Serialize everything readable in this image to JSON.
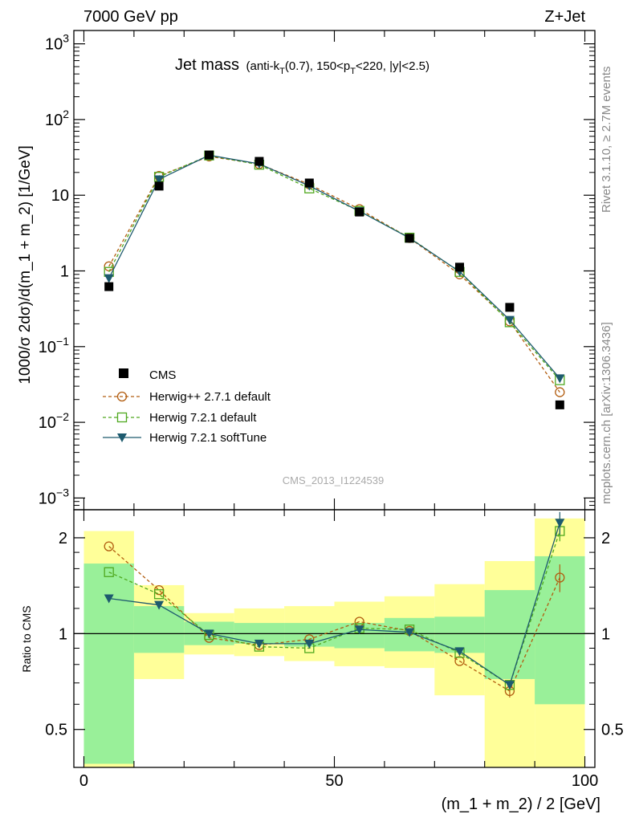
{
  "header": {
    "energy": "7000 GeV pp",
    "process": "Z+Jet"
  },
  "side_labels": {
    "rivet": "Rivet 3.1.10, ≥ 2.7M events",
    "mcplots": "mcplots.cern.ch [arXiv:1306.3436]"
  },
  "chart_data": [
    {
      "type": "scatter",
      "title": "Jet mass",
      "subtitle": "(anti-k_T(0.7), 150<p_T<220, |y|<2.5)",
      "title_parts": {
        "main": "Jet mass",
        "s1": "(anti-k",
        "s1sub": "T",
        "s2": "(0.7), 150<p",
        "s2sub": "T",
        "s3": "<220, |y|<2.5)"
      },
      "watermark": "CMS_2013_I1224539",
      "ylabel": "1000/σ 2dσ)/d(m_1 + m_2) [1/GeV]",
      "yscale": "log",
      "ylim": [
        0.0007,
        1500
      ],
      "xlim": [
        -2,
        102
      ],
      "y_ticks": [
        {
          "base": "10",
          "exp": "3",
          "value": 1000
        },
        {
          "base": "10",
          "exp": "2",
          "value": 100
        },
        {
          "base": "10",
          "exp": "",
          "value": 10
        },
        {
          "base": "1",
          "exp": "",
          "value": 1
        },
        {
          "base": "10",
          "exp": "−1",
          "value": 0.1
        },
        {
          "base": "10",
          "exp": "−2",
          "value": 0.01
        },
        {
          "base": "10",
          "exp": "−3",
          "value": 0.001
        }
      ],
      "legend_position": "lower-left",
      "legend": {
        "cms": "CMS",
        "herwigpp": "Herwig++ 2.7.1 default",
        "herwig721": "Herwig 7.2.1 default",
        "softtune": "Herwig 7.2.1 softTune"
      },
      "x": [
        5,
        15,
        25,
        35,
        45,
        55,
        65,
        75,
        85,
        95
      ],
      "series": [
        {
          "key": "cms",
          "name": "CMS",
          "color": "#000000",
          "marker": "filled-square",
          "values": [
            0.62,
            13.2,
            34.0,
            28.0,
            14.5,
            6.0,
            2.7,
            1.12,
            0.33,
            0.017
          ]
        },
        {
          "key": "herwigpp",
          "name": "Herwig++ 2.7.1 default",
          "color": "#b25d10",
          "marker": "open-circle",
          "dashed": true,
          "values": [
            1.15,
            18.0,
            32.5,
            25.8,
            13.9,
            6.55,
            2.72,
            0.9,
            0.215,
            0.025
          ]
        },
        {
          "key": "herwig721",
          "name": "Herwig 7.2.1 default",
          "color": "#4fa81e",
          "marker": "open-square",
          "dashed": true,
          "values": [
            0.97,
            17.5,
            33.5,
            25.3,
            12.3,
            6.2,
            2.75,
            0.97,
            0.21,
            0.036
          ]
        },
        {
          "key": "softtune",
          "name": "Herwig 7.2.1 softTune",
          "color": "#1d5a6e",
          "marker": "filled-triangle-down",
          "dashed": false,
          "values": [
            0.8,
            16.2,
            33.8,
            26.0,
            13.3,
            6.15,
            2.72,
            0.98,
            0.225,
            0.038
          ]
        }
      ]
    },
    {
      "type": "scatter",
      "title": "",
      "ylabel": "Ratio to CMS",
      "xlabel": "(m_1 + m_2) / 2 [GeV]",
      "yscale": "log",
      "ylim": [
        0.38,
        2.45
      ],
      "xlim": [
        -2,
        102
      ],
      "x_ticks": [
        0,
        50,
        100
      ],
      "y_ticks": [
        0.5,
        1,
        2
      ],
      "reference_line": 1,
      "bin_edges": [
        0,
        10,
        20,
        30,
        40,
        50,
        60,
        70,
        80,
        90,
        100
      ],
      "band_inner": {
        "color": "#99f099",
        "low": [
          0.39,
          0.87,
          0.92,
          0.93,
          0.91,
          0.9,
          0.88,
          0.87,
          0.72,
          0.6
        ],
        "high": [
          1.66,
          1.22,
          1.09,
          1.08,
          1.08,
          1.08,
          1.12,
          1.13,
          1.37,
          1.75
        ]
      },
      "band_outer": {
        "color": "#ffff99",
        "low": [
          0.38,
          0.72,
          0.86,
          0.85,
          0.82,
          0.79,
          0.78,
          0.64,
          0.38,
          0.38
        ],
        "high": [
          2.1,
          1.42,
          1.16,
          1.2,
          1.22,
          1.26,
          1.31,
          1.43,
          1.69,
          2.3
        ]
      },
      "x": [
        5,
        15,
        25,
        35,
        45,
        55,
        65,
        75,
        85,
        95
      ],
      "series": [
        {
          "key": "herwigpp",
          "name": "Herwig++ 2.7.1 default",
          "color": "#b25d10",
          "marker": "open-circle",
          "dashed": true,
          "values": [
            1.88,
            1.37,
            0.97,
            0.92,
            0.96,
            1.09,
            1.02,
            0.82,
            0.66,
            1.5
          ],
          "err": [
            0,
            0,
            0,
            0,
            0,
            0,
            0,
            0,
            0.03,
            0.15
          ]
        },
        {
          "key": "herwig721",
          "name": "Herwig 7.2.1 default",
          "color": "#4fa81e",
          "marker": "open-square",
          "dashed": true,
          "values": [
            1.56,
            1.33,
            0.99,
            0.91,
            0.9,
            1.04,
            1.03,
            0.87,
            0.69,
            2.1
          ],
          "err": [
            0,
            0,
            0,
            0,
            0,
            0,
            0,
            0,
            0.02,
            0.15
          ]
        },
        {
          "key": "softtune",
          "name": "Herwig 7.2.1 softTune",
          "color": "#1d5a6e",
          "marker": "filled-triangle-down",
          "dashed": false,
          "values": [
            1.29,
            1.23,
            1.0,
            0.93,
            0.93,
            1.03,
            1.01,
            0.88,
            0.69,
            2.23
          ],
          "err": [
            0,
            0,
            0,
            0,
            0,
            0,
            0,
            0,
            0.02,
            0.18
          ]
        }
      ]
    }
  ]
}
